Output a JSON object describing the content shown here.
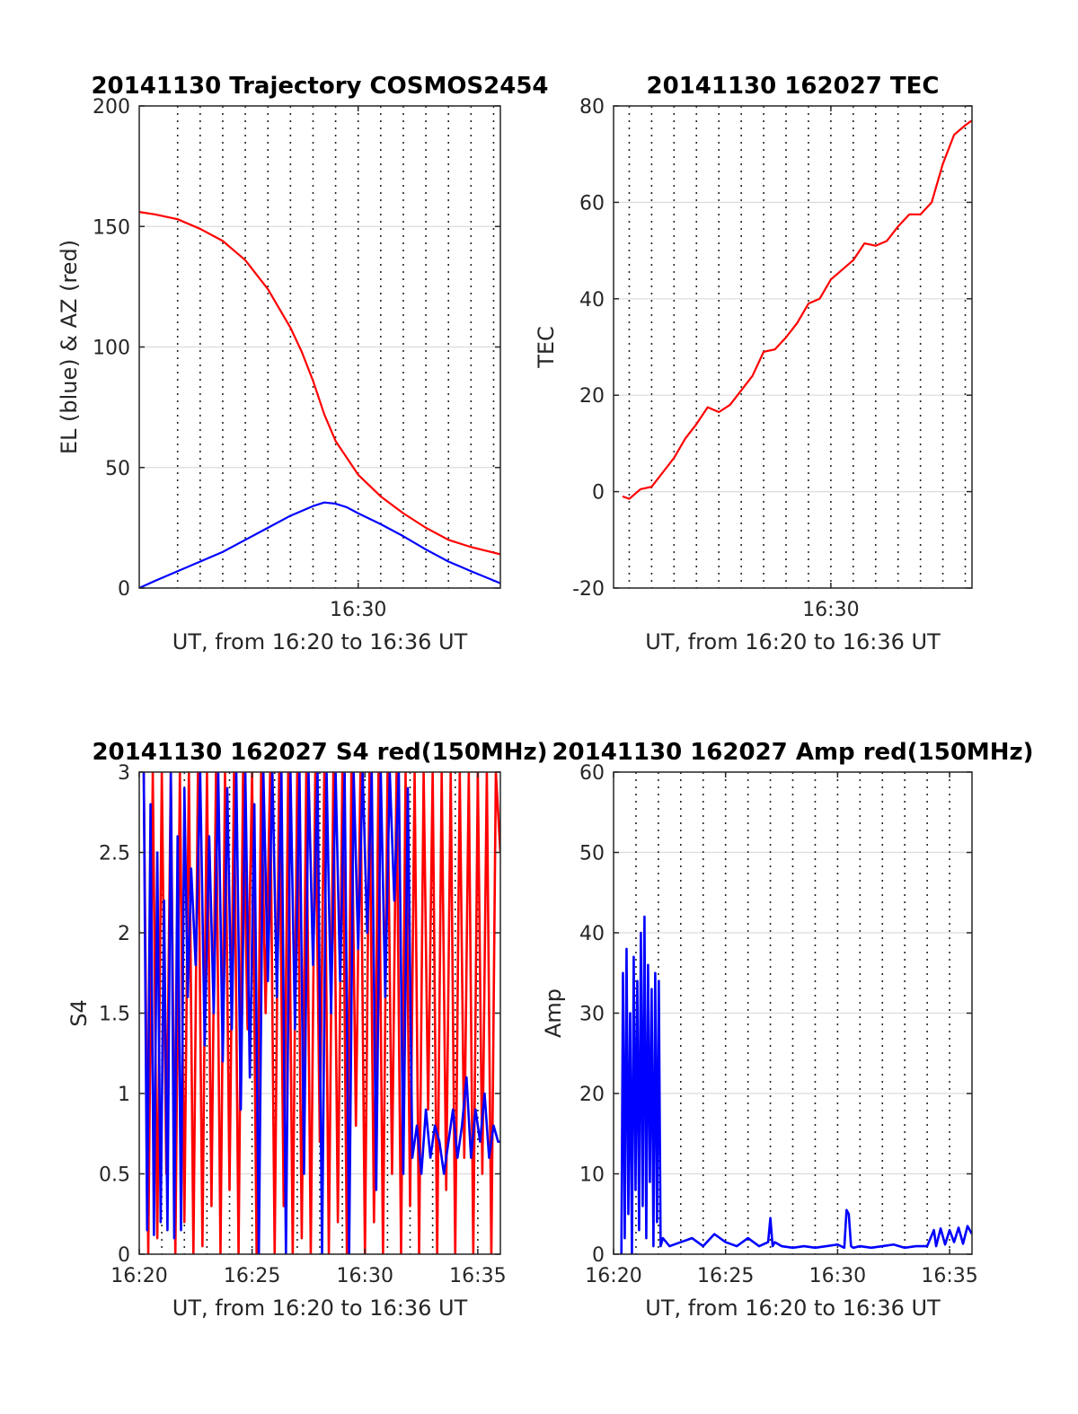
{
  "figure": {
    "x_axis_label": "UT, from 16:20 to 16:36 UT",
    "colors": {
      "red": "#ff0000",
      "blue": "#0000ff"
    }
  },
  "chart_data": [
    {
      "type": "line",
      "title": "20141130 Trajectory COSMOS2454",
      "xlabel": "UT, from 16:20 to 16:36 UT",
      "ylabel": "EL (blue) & AZ (red)",
      "xlim": [
        20.3,
        36.3
      ],
      "ylim": [
        0,
        200
      ],
      "yticks": [
        0,
        50,
        100,
        150,
        200
      ],
      "xticks": [
        {
          "value": 30,
          "label": "16:30"
        }
      ],
      "grid_x_minutes": [
        22,
        23,
        24,
        25,
        26,
        27,
        28,
        29,
        30,
        31,
        32,
        33,
        34,
        35,
        36
      ],
      "series": [
        {
          "name": "AZ",
          "color": "red",
          "x": [
            20.3,
            21,
            22,
            23,
            24,
            25,
            26,
            27,
            27.5,
            28,
            28.5,
            29,
            29.5,
            30,
            31,
            32,
            33,
            34,
            35,
            36.3
          ],
          "y": [
            156,
            155,
            153,
            149,
            144,
            136,
            124,
            108,
            98,
            86,
            72,
            61,
            54,
            47,
            38,
            31,
            25,
            20,
            17,
            14
          ]
        },
        {
          "name": "EL",
          "color": "blue",
          "x": [
            20.3,
            21,
            22,
            23,
            24,
            25,
            26,
            27,
            28,
            28.5,
            29,
            29.5,
            30,
            31,
            32,
            33,
            34,
            35,
            36.3
          ],
          "y": [
            0,
            3,
            7,
            11,
            15,
            20,
            25,
            30,
            34,
            35.5,
            35,
            33.5,
            31,
            26.5,
            21.5,
            16,
            11,
            7,
            2
          ]
        }
      ]
    },
    {
      "type": "line",
      "title": "20141130 162027 TEC",
      "xlabel": "UT, from 16:20 to 16:36 UT",
      "ylabel": "TEC",
      "xlim": [
        20.3,
        36.3
      ],
      "ylim": [
        -20,
        80
      ],
      "yticks": [
        -20,
        0,
        20,
        40,
        60,
        80
      ],
      "xticks": [
        {
          "value": 30,
          "label": "16:30"
        }
      ],
      "grid_x_minutes": [
        21,
        22,
        23,
        24,
        25,
        26,
        27,
        28,
        29,
        30,
        31,
        32,
        33,
        34,
        35,
        36
      ],
      "series": [
        {
          "name": "TEC",
          "color": "red",
          "x": [
            20.7,
            21,
            21.5,
            22,
            22.5,
            23,
            23.5,
            24,
            24.5,
            25,
            25.5,
            26,
            26.5,
            27,
            27.5,
            28,
            28.5,
            29,
            29.5,
            30,
            30.5,
            31,
            31.5,
            32,
            32.5,
            33,
            33.5,
            34,
            34.5,
            35,
            35.5,
            36,
            36.3
          ],
          "y": [
            -1,
            -1.5,
            0.5,
            1,
            4,
            7,
            11,
            14,
            17.5,
            16.5,
            18,
            21,
            24,
            29,
            29.5,
            32,
            35,
            39,
            40,
            44,
            46,
            48,
            51.5,
            51,
            52,
            55,
            57.5,
            57.5,
            60,
            68,
            74,
            76,
            77
          ]
        }
      ]
    },
    {
      "type": "line",
      "title": "20141130 162027 S4 red(150MHz)",
      "xlabel": "UT, from 16:20 to 16:36 UT",
      "ylabel": "S4",
      "xlim": [
        20,
        36
      ],
      "ylim": [
        0,
        3
      ],
      "yticks": [
        0,
        0.5,
        1,
        1.5,
        2,
        2.5,
        3
      ],
      "xticks": [
        {
          "value": 20,
          "label": "16:20"
        },
        {
          "value": 25,
          "label": "16:25"
        },
        {
          "value": 30,
          "label": "16:30"
        },
        {
          "value": 35,
          "label": "16:35"
        }
      ],
      "grid_x_minutes": [
        21,
        22,
        23,
        24,
        25,
        26,
        27,
        28,
        29,
        30,
        31,
        32,
        33,
        34,
        35,
        36
      ],
      "series": [
        {
          "name": "S4 red (150MHz)",
          "color": "red",
          "x": [
            20.2,
            20.4,
            20.6,
            20.8,
            21.0,
            21.2,
            21.4,
            21.6,
            21.8,
            22.0,
            22.2,
            22.4,
            22.6,
            22.8,
            23.0,
            23.2,
            23.4,
            23.6,
            23.8,
            24.0,
            24.2,
            24.4,
            24.6,
            24.8,
            25.0,
            25.2,
            25.4,
            25.6,
            25.8,
            26.0,
            26.2,
            26.4,
            26.6,
            26.8,
            27.0,
            27.2,
            27.4,
            27.6,
            27.8,
            28.0,
            28.2,
            28.4,
            28.6,
            28.8,
            29.0,
            29.2,
            29.4,
            29.6,
            29.8,
            30.0,
            30.2,
            30.4,
            30.6,
            30.8,
            31.0,
            31.2,
            31.4,
            31.6,
            31.8,
            32.0,
            32.2,
            32.4,
            32.6,
            32.8,
            33.0,
            33.2,
            33.4,
            33.6,
            33.8,
            34.0,
            34.2,
            34.4,
            34.6,
            34.8,
            35.0,
            35.2,
            35.4,
            35.6,
            35.8,
            36.0
          ],
          "y": [
            3,
            0,
            3,
            0.1,
            3,
            0.5,
            3,
            0,
            3,
            0.2,
            3,
            0,
            3,
            0.05,
            3,
            0.3,
            3,
            0,
            3,
            0.4,
            3,
            0,
            3,
            1.4,
            3,
            0,
            3,
            1.5,
            3,
            0,
            3,
            0.3,
            3,
            0,
            3,
            0.1,
            3,
            0,
            3,
            0.7,
            3,
            0,
            3,
            0.2,
            3,
            0,
            3,
            0.8,
            3,
            0,
            3,
            0.2,
            3,
            0,
            3,
            0.5,
            3,
            0,
            3,
            0.3,
            3,
            0,
            3,
            0.9,
            3,
            0,
            3,
            0.4,
            3,
            0,
            3,
            0.6,
            3,
            0,
            3,
            0.5,
            3,
            0,
            3,
            2.5
          ]
        },
        {
          "name": "S4",
          "color": "blue",
          "x": [
            20.2,
            20.35,
            20.5,
            20.65,
            20.8,
            20.95,
            21.1,
            21.25,
            21.4,
            21.55,
            21.7,
            21.85,
            22.0,
            22.15,
            22.3,
            22.5,
            22.7,
            22.9,
            23.1,
            23.3,
            23.5,
            23.7,
            23.9,
            24.1,
            24.3,
            24.5,
            24.7,
            24.9,
            25.1,
            25.3,
            25.5,
            25.7,
            25.9,
            26.1,
            26.3,
            26.5,
            26.7,
            26.9,
            27.1,
            27.3,
            27.5,
            27.7,
            27.9,
            28.1,
            28.3,
            28.5,
            28.7,
            28.9,
            29.1,
            29.3,
            29.5,
            29.7,
            29.9,
            30.1,
            30.3,
            30.5,
            30.7,
            30.9,
            31.1,
            31.3,
            31.5,
            31.7,
            31.9,
            32.1,
            32.3,
            32.5,
            32.7,
            32.9,
            33.1,
            33.3,
            33.5,
            33.7,
            33.9,
            34.1,
            34.3,
            34.5,
            34.7,
            34.9,
            35.1,
            35.3,
            35.5,
            35.7,
            35.9,
            36.0
          ],
          "y": [
            3,
            0.15,
            2.8,
            0.12,
            2.5,
            0.2,
            2.2,
            0.15,
            3,
            0.1,
            2.6,
            0.15,
            2.9,
            1.6,
            2.4,
            1.8,
            3,
            1.3,
            2.6,
            1.5,
            3,
            1.2,
            2.9,
            1.4,
            3,
            0.9,
            3,
            1.1,
            2.8,
            0,
            3,
            1.7,
            3,
            1.6,
            3,
            0,
            3,
            1.4,
            3,
            0.5,
            3,
            1.8,
            3,
            0,
            3,
            1.5,
            3,
            1.7,
            3,
            0,
            3,
            1.9,
            3,
            2.0,
            3,
            0.4,
            3,
            1.6,
            3,
            2.2,
            3,
            0.5,
            2.9,
            0.6,
            0.8,
            0.5,
            0.9,
            0.6,
            0.8,
            0.7,
            0.5,
            0.7,
            0.9,
            0.6,
            0.8,
            1.1,
            0.6,
            0.9,
            0.7,
            1.0,
            0.6,
            0.8,
            0.7,
            0.7
          ]
        }
      ]
    },
    {
      "type": "line",
      "title": "20141130 162027 Amp red(150MHz)",
      "xlabel": "UT, from 16:20 to 16:36 UT",
      "ylabel": "Amp",
      "xlim": [
        20,
        36
      ],
      "ylim": [
        0,
        60
      ],
      "yticks": [
        0,
        10,
        20,
        30,
        40,
        50,
        60
      ],
      "xticks": [
        {
          "value": 20,
          "label": "16:20"
        },
        {
          "value": 25,
          "label": "16:25"
        },
        {
          "value": 30,
          "label": "16:30"
        },
        {
          "value": 35,
          "label": "16:35"
        }
      ],
      "grid_x_minutes": [
        21,
        22,
        23,
        24,
        25,
        26,
        27,
        28,
        29,
        30,
        31,
        32,
        33,
        34,
        35,
        36
      ],
      "series": [
        {
          "name": "Amp",
          "color": "blue",
          "x": [
            20.35,
            20.42,
            20.5,
            20.58,
            20.66,
            20.74,
            20.82,
            20.9,
            20.98,
            21.06,
            21.14,
            21.22,
            21.3,
            21.38,
            21.46,
            21.54,
            21.62,
            21.7,
            21.78,
            21.86,
            21.94,
            22.02,
            22.1,
            22.2,
            22.5,
            23,
            23.5,
            24,
            24.5,
            25,
            25.5,
            26,
            26.5,
            26.9,
            27.0,
            27.1,
            27.2,
            27.5,
            28,
            28.5,
            29,
            29.5,
            30,
            30.3,
            30.4,
            30.5,
            30.6,
            30.7,
            31,
            31.5,
            32,
            32.5,
            33,
            33.5,
            34,
            34.3,
            34.4,
            34.6,
            34.8,
            35,
            35.2,
            35.4,
            35.6,
            35.8,
            36.0
          ],
          "y": [
            0,
            35,
            2,
            38,
            5,
            30,
            0,
            37,
            8,
            34,
            3,
            40,
            6,
            42,
            2,
            36,
            9,
            33,
            1,
            35,
            4,
            34,
            1,
            2,
            1,
            1.5,
            2,
            1,
            2.5,
            1.5,
            1,
            2,
            1,
            1.5,
            4.5,
            1,
            1.5,
            1,
            0.8,
            1,
            0.8,
            1,
            1.2,
            0.8,
            5.5,
            5,
            1,
            0.8,
            1,
            0.8,
            1,
            1.2,
            0.8,
            1,
            1,
            3,
            1,
            3.2,
            1.2,
            3,
            1.5,
            3.3,
            1.3,
            3.5,
            2.5
          ]
        }
      ]
    }
  ]
}
